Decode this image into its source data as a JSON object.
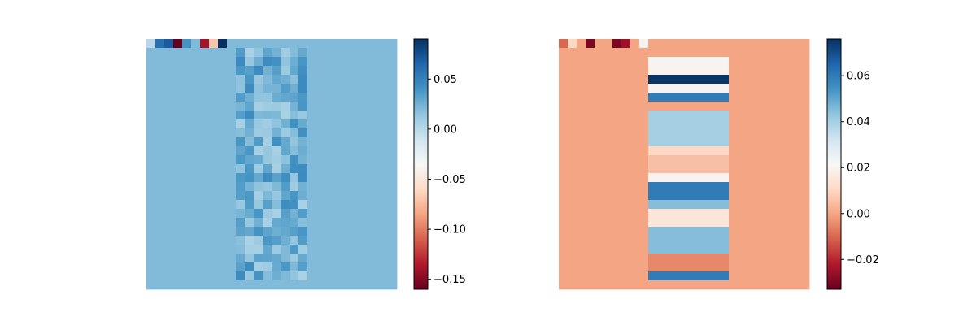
{
  "chart_data": [
    {
      "type": "heatmap",
      "title": "",
      "xlabel": "",
      "ylabel": "",
      "axis_visible": false,
      "grid": [
        28,
        28
      ],
      "colormap": "RdBu",
      "colorbar": {
        "position": "right",
        "vmin": -0.16,
        "vmax": 0.09,
        "ticks": [
          -0.15,
          -0.1,
          -0.05,
          0.0,
          0.05
        ],
        "tick_labels": [
          "−0.15",
          "−0.10",
          "−0.05",
          "0.00",
          "0.05"
        ]
      },
      "background_value": 0.02,
      "top_row_values": [
        0.0,
        0.06,
        0.07,
        -0.16,
        0.04,
        0.02,
        -0.14,
        -0.07,
        0.09,
        0.02,
        0.02,
        0.02
      ],
      "center_region": {
        "col_start": 10,
        "col_end": 17,
        "row_start": 1,
        "row_end": 26,
        "value_range": [
          0.005,
          0.045
        ]
      }
    },
    {
      "type": "heatmap",
      "title": "",
      "xlabel": "",
      "ylabel": "",
      "axis_visible": false,
      "grid": [
        28,
        28
      ],
      "colormap": "RdBu",
      "colorbar": {
        "position": "right",
        "vmin": -0.033,
        "vmax": 0.076,
        "ticks": [
          -0.02,
          0.0,
          0.02,
          0.04,
          0.06
        ],
        "tick_labels": [
          "−0.02",
          "0.00",
          "0.02",
          "0.04",
          "0.06"
        ]
      },
      "background_value": -0.0,
      "top_row_values": [
        -0.01,
        0.01,
        0.0,
        -0.03,
        -0.0,
        -0.0,
        -0.03,
        -0.025,
        0.0,
        0.02,
        0.0,
        0.0
      ],
      "center_region": {
        "col_start": 10,
        "col_end": 18,
        "row_start": 1,
        "row_end": 26,
        "row_values": [
          0.0,
          0.02,
          0.02,
          0.075,
          0.02,
          0.06,
          0.0,
          0.04,
          0.04,
          0.04,
          0.04,
          0.01,
          0.005,
          0.005,
          0.02,
          0.06,
          0.06,
          0.045,
          0.015,
          0.015,
          0.045,
          0.045,
          0.045,
          -0.005,
          -0.005,
          0.06
        ]
      }
    }
  ]
}
